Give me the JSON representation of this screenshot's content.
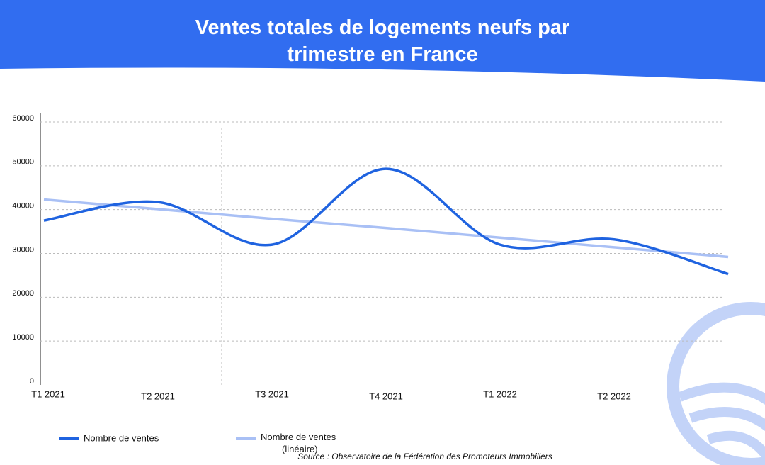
{
  "chart_data": {
    "type": "line",
    "title": "Ventes totales de logements neufs par trimestre en France",
    "categories": [
      "T1 2021",
      "T2 2021",
      "T3 2021",
      "T4 2021",
      "T1 2022",
      "T2 2022",
      null
    ],
    "series": [
      {
        "name": "Nombre de ventes",
        "color": "#1f63e0",
        "values": [
          37500,
          41700,
          32000,
          49300,
          32000,
          33200,
          25300
        ]
      },
      {
        "name": "Nombre de ventes (linéaire)",
        "color": "#a9c0f5",
        "values": [
          42300,
          40100,
          37900,
          35800,
          33600,
          31400,
          29200
        ]
      }
    ],
    "ylim": [
      0,
      60000
    ],
    "yticks": [
      0,
      10000,
      20000,
      30000,
      40000,
      50000,
      60000
    ],
    "grid": true,
    "smooth": true,
    "source": "Source : Observatoire de la Fédération des Promoteurs Immobiliers"
  }
}
